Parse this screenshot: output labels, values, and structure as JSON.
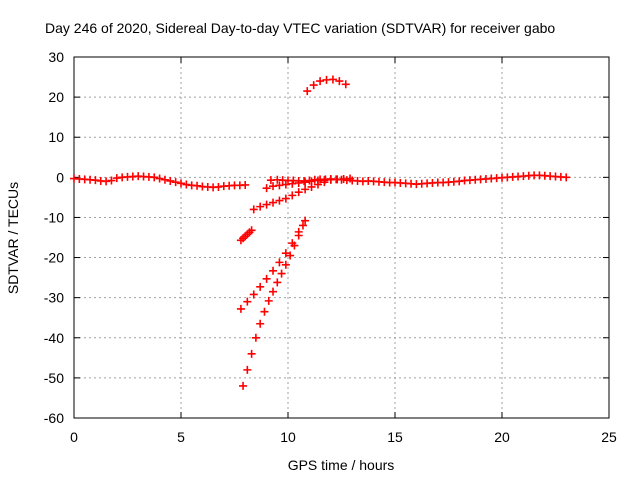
{
  "chart_data": {
    "type": "scatter",
    "title": "Day 246 of 2020, Sidereal Day-to-day VTEC variation (SDTVAR) for receiver gabo",
    "xlabel": "GPS time / hours",
    "ylabel": "SDTVAR / TECUs",
    "xlim": [
      0,
      25
    ],
    "ylim": [
      -60,
      30
    ],
    "xticks": [
      0,
      5,
      10,
      15,
      20,
      25
    ],
    "yticks": [
      -60,
      -50,
      -40,
      -30,
      -20,
      -10,
      0,
      10,
      20,
      30
    ],
    "grid": true,
    "legend": "none",
    "marker": "plus",
    "color": "#ff0000",
    "series": [
      {
        "x": [
          0.0,
          0.25,
          0.5,
          0.75,
          1.0,
          1.25,
          1.5,
          1.75,
          2.0,
          2.25,
          2.5,
          2.75,
          3.0,
          3.25,
          3.5,
          3.75,
          4.0,
          4.25,
          4.5,
          4.75,
          5.0,
          5.25,
          5.5,
          5.75,
          6.0,
          6.25,
          6.5,
          6.75,
          7.0,
          7.25,
          7.5,
          7.75,
          8.0
        ],
        "y": [
          -0.3,
          -0.4,
          -0.5,
          -0.6,
          -0.7,
          -0.9,
          -1.0,
          -0.8,
          -0.2,
          0.0,
          0.1,
          0.2,
          0.3,
          0.2,
          0.1,
          0.0,
          -0.3,
          -0.6,
          -0.9,
          -1.2,
          -1.5,
          -1.8,
          -2.0,
          -2.1,
          -2.3,
          -2.4,
          -2.5,
          -2.4,
          -2.2,
          -2.1,
          -2.0,
          -2.0,
          -1.9
        ]
      },
      {
        "x": [
          9.2,
          9.5,
          9.75,
          10.0,
          10.25,
          10.5,
          10.75,
          11.0,
          11.25,
          11.5,
          11.75,
          12.0,
          12.25,
          12.5,
          12.75,
          13.0,
          13.25,
          13.5,
          13.75,
          14.0,
          14.25,
          14.5,
          14.75,
          15.0,
          15.25,
          15.5,
          15.75,
          16.0,
          16.25,
          16.5,
          16.75,
          17.0,
          17.25,
          17.5,
          17.75,
          18.0,
          18.25,
          18.5,
          18.75,
          19.0,
          19.25,
          19.5,
          19.75,
          20.0,
          20.25,
          20.5,
          20.75,
          21.0,
          21.25,
          21.5,
          21.75,
          22.0,
          22.25,
          22.5,
          22.75,
          23.0
        ],
        "y": [
          -0.7,
          -0.6,
          -0.7,
          -0.8,
          -0.8,
          -0.9,
          -0.9,
          -0.8,
          -0.6,
          -0.5,
          -0.5,
          -0.4,
          -0.5,
          -0.6,
          -0.7,
          -0.8,
          -0.9,
          -1.0,
          -0.9,
          -1.0,
          -1.1,
          -1.2,
          -1.3,
          -1.3,
          -1.4,
          -1.5,
          -1.6,
          -1.7,
          -1.6,
          -1.5,
          -1.4,
          -1.3,
          -1.3,
          -1.2,
          -1.1,
          -1.0,
          -0.8,
          -0.7,
          -0.6,
          -0.5,
          -0.4,
          -0.3,
          -0.2,
          -0.1,
          0.0,
          0.1,
          0.2,
          0.3,
          0.4,
          0.5,
          0.5,
          0.4,
          0.3,
          0.2,
          0.1,
          0.0
        ]
      },
      {
        "x": [
          9.0,
          9.3,
          9.6,
          9.9,
          10.2,
          10.5,
          10.8,
          11.1,
          11.4,
          11.7,
          12.0,
          12.3,
          12.6,
          12.9
        ],
        "y": [
          -2.7,
          -2.2,
          -2.0,
          -1.8,
          -1.6,
          -1.4,
          -1.2,
          -1.0,
          -0.8,
          -0.7,
          -0.6,
          -0.5,
          -0.4,
          -0.3
        ]
      },
      {
        "x": [
          8.4,
          8.7,
          9.0,
          9.3,
          9.6,
          9.9,
          10.2,
          10.5,
          10.8,
          11.1,
          11.4,
          11.7,
          12.0
        ],
        "y": [
          -8.0,
          -7.3,
          -6.8,
          -6.3,
          -5.8,
          -5.3,
          -4.5,
          -3.7,
          -3.0,
          -2.4,
          -1.8,
          -1.2,
          -0.6
        ]
      },
      {
        "x": [
          7.8,
          7.9,
          8.0,
          8.1,
          8.2,
          8.3
        ],
        "y": [
          -15.7,
          -15.2,
          -14.7,
          -14.2,
          -13.7,
          -13.2
        ]
      },
      {
        "x": [
          7.8,
          8.1,
          8.4,
          8.7,
          9.0,
          9.3,
          9.6,
          9.9,
          10.2,
          10.5,
          10.8
        ],
        "y": [
          -32.8,
          -31.0,
          -29.2,
          -27.3,
          -25.3,
          -23.3,
          -21.2,
          -18.9,
          -16.4,
          -13.6,
          -10.8
        ]
      },
      {
        "x": [
          7.9,
          8.1,
          8.3,
          8.5,
          8.7,
          8.9,
          9.1,
          9.3,
          9.5,
          9.7,
          9.9,
          10.1,
          10.3,
          10.5,
          10.7
        ],
        "y": [
          -52.0,
          -48.0,
          -44.0,
          -40.0,
          -36.5,
          -33.5,
          -30.8,
          -28.5,
          -26.2,
          -24.0,
          -21.8,
          -19.5,
          -17.0,
          -14.5,
          -12.0
        ]
      },
      {
        "x": [
          10.9,
          11.2,
          11.5,
          11.8,
          12.1,
          12.4,
          12.7
        ],
        "y": [
          21.5,
          23.0,
          24.0,
          24.3,
          24.4,
          24.0,
          23.2
        ]
      }
    ]
  }
}
